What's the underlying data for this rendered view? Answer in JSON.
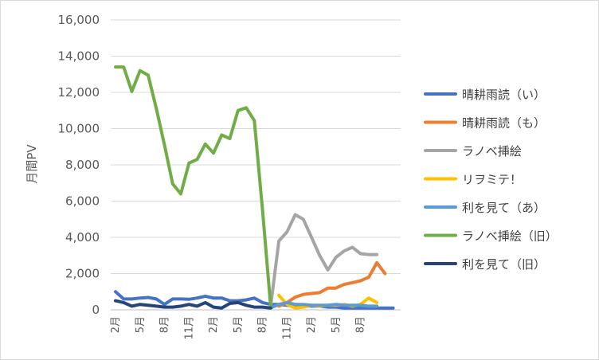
{
  "chart_data": {
    "type": "line",
    "title": "",
    "xlabel": "",
    "ylabel": "月間PV",
    "ylim": [
      0,
      16000
    ],
    "yticks": [
      "0",
      "2,000",
      "4,000",
      "6,000",
      "8,000",
      "10,000",
      "12,000",
      "14,000",
      "16,000"
    ],
    "x_tick_labels": [
      "2月",
      "5月",
      "8月",
      "11月",
      "2月",
      "5月",
      "8月",
      "11月",
      "2月",
      "5月",
      "8月"
    ],
    "grid": true,
    "legend_position": "right",
    "series": [
      {
        "name": "晴耕雨読（い）",
        "color": "#4472C4",
        "start": 0,
        "values": [
          1000,
          600,
          600,
          650,
          680,
          600,
          300,
          600,
          600,
          580,
          650,
          750,
          650,
          650,
          500,
          500,
          550,
          650,
          400,
          300,
          300,
          250,
          200,
          200,
          200,
          200,
          150,
          150,
          100,
          100,
          100,
          100,
          100,
          100,
          100
        ]
      },
      {
        "name": "晴耕雨読（も）",
        "color": "#ED7D31",
        "start": 20,
        "values": [
          200,
          400,
          700,
          850,
          900,
          950,
          1200,
          1200,
          1400,
          1500,
          1600,
          1800,
          2600,
          2000
        ]
      },
      {
        "name": "ラノベ挿絵",
        "color": "#A5A5A5",
        "start": 19,
        "values": [
          200,
          3800,
          4300,
          5250,
          5000,
          4000,
          3000,
          2200,
          2900,
          3250,
          3450,
          3100,
          3050,
          3050
        ]
      },
      {
        "name": "リヲミテ！",
        "color": "#FFC000",
        "start": 20,
        "values": [
          800,
          300,
          100,
          150,
          250,
          200,
          250,
          250,
          300,
          200,
          300,
          650,
          400
        ]
      },
      {
        "name": "利を見て（あ）",
        "color": "#5B9BD5",
        "start": 19,
        "values": [
          100,
          300,
          400,
          300,
          300,
          250,
          250,
          250,
          300,
          250,
          250,
          250,
          200,
          200
        ]
      },
      {
        "name": "ラノベ挿絵（旧）",
        "color": "#70AD47",
        "start": 0,
        "values": [
          13400,
          13400,
          12050,
          13200,
          12950,
          11100,
          9100,
          6950,
          6400,
          8100,
          8300,
          9150,
          8650,
          9650,
          9450,
          11000,
          11150,
          10450,
          5500,
          200
        ]
      },
      {
        "name": "利を見て（旧）",
        "color": "#264478",
        "start": 0,
        "values": [
          500,
          400,
          200,
          300,
          250,
          200,
          150,
          150,
          200,
          300,
          200,
          400,
          150,
          100,
          350,
          400,
          250,
          150,
          150,
          100
        ]
      }
    ]
  }
}
